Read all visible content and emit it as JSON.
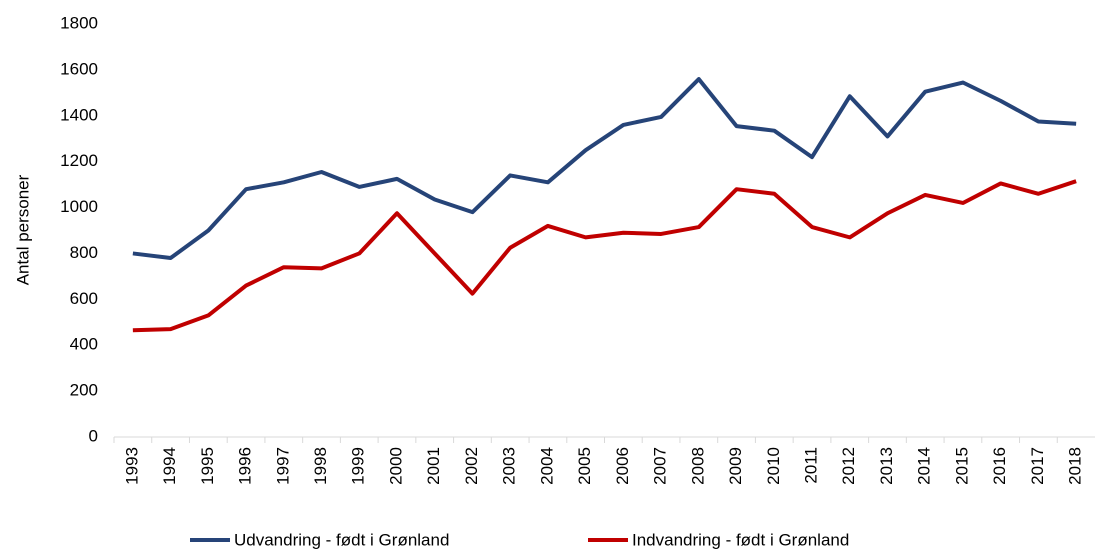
{
  "chart_data": {
    "type": "line",
    "y_label": "Antal personer",
    "categories": [
      "1993",
      "1994",
      "1995",
      "1996",
      "1997",
      "1998",
      "1999",
      "2000",
      "2001",
      "2002",
      "2003",
      "2004",
      "2005",
      "2006",
      "2007",
      "2008",
      "2009",
      "2010",
      "2011",
      "2012",
      "2013",
      "2014",
      "2015",
      "2016",
      "2017",
      "2018"
    ],
    "series": [
      {
        "name": "Udvandring - født i Grønland",
        "color": "#264478",
        "values": [
          800,
          780,
          900,
          1080,
          1110,
          1155,
          1090,
          1125,
          1035,
          980,
          1140,
          1110,
          1250,
          1360,
          1395,
          1560,
          1355,
          1335,
          1220,
          1485,
          1310,
          1505,
          1545,
          1465,
          1375,
          1365
        ]
      },
      {
        "name": "Indvandring - født i Grønland",
        "color": "#c00000",
        "values": [
          465,
          470,
          530,
          660,
          740,
          735,
          800,
          975,
          800,
          625,
          825,
          920,
          870,
          890,
          885,
          915,
          1080,
          1060,
          915,
          870,
          975,
          1055,
          1020,
          1105,
          1060,
          1115
        ]
      }
    ],
    "ylim": [
      0,
      1800
    ],
    "yticks": [
      0,
      200,
      400,
      600,
      800,
      1000,
      1200,
      1400,
      1600,
      1800
    ],
    "grid": false,
    "legend": "bottom"
  }
}
